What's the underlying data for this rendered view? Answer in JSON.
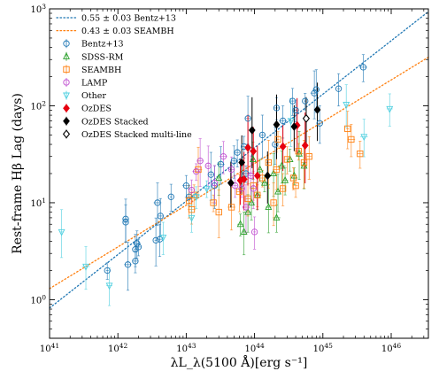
{
  "chart_data": {
    "type": "scatter",
    "xlabel": "λL_λ(5100 Å)[erg s⁻¹]",
    "ylabel": "Rest-frame Hβ Lag (days)",
    "xscale": "log",
    "yscale": "log",
    "xlim": [
      1e+41,
      3.5e+46
    ],
    "ylim": [
      0.4,
      1000
    ],
    "xticks": [
      {
        "value": 1e+41,
        "label": "10^41"
      },
      {
        "value": 1e+42,
        "label": "10^42"
      },
      {
        "value": 1e+43,
        "label": "10^43"
      },
      {
        "value": 1e+44,
        "label": "10^44"
      },
      {
        "value": 1e+45,
        "label": "10^45"
      },
      {
        "value": 1e+46,
        "label": "10^46"
      }
    ],
    "yticks": [
      {
        "value": 1,
        "label": "10^0"
      },
      {
        "value": 10,
        "label": "10^1"
      },
      {
        "value": 100,
        "label": "10^2"
      },
      {
        "value": 1000,
        "label": "10^3"
      }
    ],
    "fits": [
      {
        "name": "0.55 ± 0.03 Bentz+13",
        "color": "#1f77b4",
        "style": "dotted",
        "x": [
          1e+41,
          3.5e+46
        ],
        "y": [
          0.82,
          936
        ]
      },
      {
        "name": "0.43 ± 0.03 SEAMBH",
        "color": "#ff7f0e",
        "style": "dotted",
        "x": [
          1e+41,
          3.5e+46
        ],
        "y": [
          1.3,
          317
        ]
      }
    ],
    "series": [
      {
        "name": "Bentz+13",
        "color": "#1f77b4",
        "marker": "circle-open",
        "points": [
          {
            "x": 7e+41,
            "y": 2.0
          },
          {
            "x": 1.4e+42,
            "y": 2.3
          },
          {
            "x": 1.3e+42,
            "y": 6.8
          },
          {
            "x": 1.3e+42,
            "y": 6.3
          },
          {
            "x": 1.8e+42,
            "y": 3.3
          },
          {
            "x": 1.9e+42,
            "y": 3.8
          },
          {
            "x": 1.8e+42,
            "y": 2.5
          },
          {
            "x": 2e+42,
            "y": 3.5
          },
          {
            "x": 3.6e+42,
            "y": 4.1
          },
          {
            "x": 3.8e+42,
            "y": 10.0
          },
          {
            "x": 4.2e+42,
            "y": 7.3
          },
          {
            "x": 4.1e+42,
            "y": 4.2
          },
          {
            "x": 6e+42,
            "y": 11.5
          },
          {
            "x": 1e+43,
            "y": 15.0
          },
          {
            "x": 1.1e+43,
            "y": 11.5
          },
          {
            "x": 2.3e+43,
            "y": 19.5
          },
          {
            "x": 2.6e+43,
            "y": 15.0
          },
          {
            "x": 3.2e+43,
            "y": 25.0
          },
          {
            "x": 5e+43,
            "y": 27.0
          },
          {
            "x": 5.6e+43,
            "y": 33.0
          },
          {
            "x": 7e+43,
            "y": 38.0
          },
          {
            "x": 7.5e+43,
            "y": 20.0
          },
          {
            "x": 8e+43,
            "y": 74.0
          },
          {
            "x": 1.3e+44,
            "y": 50.0
          },
          {
            "x": 2e+44,
            "y": 40.0
          },
          {
            "x": 2.6e+44,
            "y": 70.0
          },
          {
            "x": 3.6e+44,
            "y": 112.0
          },
          {
            "x": 4e+44,
            "y": 90.0
          },
          {
            "x": 5.5e+44,
            "y": 112.0
          },
          {
            "x": 7.5e+44,
            "y": 135.0
          },
          {
            "x": 8e+44,
            "y": 147.0
          },
          {
            "x": 9e+44,
            "y": 66.0
          },
          {
            "x": 1.7e+45,
            "y": 150.0
          },
          {
            "x": 3.9e+45,
            "y": 250.0
          },
          {
            "x": 2.1e+44,
            "y": 95.0
          }
        ]
      },
      {
        "name": "SDSS-RM",
        "color": "#2ca02c",
        "marker": "triangle-up-open",
        "points": [
          {
            "x": 7e+43,
            "y": 5.0
          },
          {
            "x": 8e+43,
            "y": 8.0
          },
          {
            "x": 9e+43,
            "y": 10.0
          },
          {
            "x": 1.1e+44,
            "y": 12.0
          },
          {
            "x": 1.2e+44,
            "y": 22.0
          },
          {
            "x": 1.4e+44,
            "y": 16.0
          },
          {
            "x": 1.6e+44,
            "y": 9.0
          },
          {
            "x": 1.9e+44,
            "y": 20.0
          },
          {
            "x": 2.2e+44,
            "y": 13.0
          },
          {
            "x": 2.5e+44,
            "y": 24.0
          },
          {
            "x": 2.8e+44,
            "y": 17.0
          },
          {
            "x": 3.3e+44,
            "y": 28.0
          },
          {
            "x": 3.8e+44,
            "y": 19.0
          },
          {
            "x": 4.5e+44,
            "y": 32.0
          },
          {
            "x": 5.3e+44,
            "y": 24.0
          },
          {
            "x": 9.5e+43,
            "y": 28.0
          },
          {
            "x": 3e+43,
            "y": 18.0
          },
          {
            "x": 2.1e+44,
            "y": 7.0
          },
          {
            "x": 6.2e+43,
            "y": 6.0
          }
        ]
      },
      {
        "name": "SEAMBH",
        "color": "#ff7f0e",
        "marker": "square-open",
        "points": [
          {
            "x": 1.1e+43,
            "y": 10.5
          },
          {
            "x": 1.2e+43,
            "y": 8.5
          },
          {
            "x": 1.3e+43,
            "y": 12.0
          },
          {
            "x": 2.5e+43,
            "y": 10.0
          },
          {
            "x": 3e+43,
            "y": 8.0
          },
          {
            "x": 4.6e+43,
            "y": 9.0
          },
          {
            "x": 6e+43,
            "y": 13.0
          },
          {
            "x": 8e+43,
            "y": 11.0
          },
          {
            "x": 9.6e+43,
            "y": 15.0
          },
          {
            "x": 1.1e+44,
            "y": 12.0
          },
          {
            "x": 1.3e+44,
            "y": 18.0
          },
          {
            "x": 1.6e+44,
            "y": 26.0
          },
          {
            "x": 1.9e+44,
            "y": 10.0
          },
          {
            "x": 2.1e+44,
            "y": 22.0
          },
          {
            "x": 2.6e+44,
            "y": 14.0
          },
          {
            "x": 3e+44,
            "y": 28.0
          },
          {
            "x": 3.7e+44,
            "y": 18.0
          },
          {
            "x": 4.4e+44,
            "y": 34.0
          },
          {
            "x": 5.3e+44,
            "y": 26.0
          },
          {
            "x": 6.3e+44,
            "y": 30.0
          },
          {
            "x": 2.3e+45,
            "y": 58.0
          },
          {
            "x": 2.6e+45,
            "y": 45.0
          },
          {
            "x": 3.5e+45,
            "y": 32.0
          },
          {
            "x": 4e+44,
            "y": 15.0
          },
          {
            "x": 2.2e+44,
            "y": 45.0
          },
          {
            "x": 1.5e+43,
            "y": 22.0
          }
        ]
      },
      {
        "name": "LAMP",
        "color": "#c04fd0",
        "marker": "circle-open",
        "points": [
          {
            "x": 1.2e+43,
            "y": 13.5
          },
          {
            "x": 1.4e+43,
            "y": 21.0
          },
          {
            "x": 1.6e+43,
            "y": 27.0
          },
          {
            "x": 2.1e+43,
            "y": 24.0
          },
          {
            "x": 2.6e+43,
            "y": 16.0
          },
          {
            "x": 3.5e+43,
            "y": 30.0
          },
          {
            "x": 4.6e+43,
            "y": 22.0
          },
          {
            "x": 5.2e+43,
            "y": 15.0
          },
          {
            "x": 6.5e+43,
            "y": 14.0
          },
          {
            "x": 7.5e+43,
            "y": 9.0
          },
          {
            "x": 8.8e+43,
            "y": 19.0
          },
          {
            "x": 9.6e+43,
            "y": 14.0
          },
          {
            "x": 1e+44,
            "y": 5.0
          }
        ]
      },
      {
        "name": "Other",
        "color": "#4fd0e0",
        "marker": "triangle-down-open",
        "points": [
          {
            "x": 1.5e+41,
            "y": 5.0
          },
          {
            "x": 3.4e+41,
            "y": 2.2
          },
          {
            "x": 7.5e+41,
            "y": 1.4
          },
          {
            "x": 4.6e+42,
            "y": 4.4
          },
          {
            "x": 1.2e+43,
            "y": 7.0
          },
          {
            "x": 1.4e+43,
            "y": 11.5
          },
          {
            "x": 2e+43,
            "y": 14.0
          },
          {
            "x": 3.4e+44,
            "y": 70.0
          },
          {
            "x": 2.2e+45,
            "y": 103.0
          },
          {
            "x": 4e+45,
            "y": 48.0
          },
          {
            "x": 9.5e+45,
            "y": 93.0
          }
        ]
      },
      {
        "name": "OzDES",
        "color": "#e6000f",
        "marker": "diamond-filled",
        "points": [
          {
            "x": 6.2e+43,
            "y": 17.0
          },
          {
            "x": 7e+43,
            "y": 17.5
          },
          {
            "x": 8e+43,
            "y": 37.0
          },
          {
            "x": 9.6e+43,
            "y": 34.0
          },
          {
            "x": 1.1e+44,
            "y": 19.0
          },
          {
            "x": 2.6e+44,
            "y": 38.0
          },
          {
            "x": 4.2e+44,
            "y": 63.0
          },
          {
            "x": 5.5e+44,
            "y": 39.0
          }
        ]
      },
      {
        "name": "OzDES Stacked",
        "color": "#000000",
        "marker": "diamond-filled",
        "points": [
          {
            "x": 4.5e+43,
            "y": 16.0
          },
          {
            "x": 6.5e+43,
            "y": 26.0
          },
          {
            "x": 9.2e+43,
            "y": 56.0
          },
          {
            "x": 1.55e+44,
            "y": 19.0
          },
          {
            "x": 2.1e+44,
            "y": 64.0
          },
          {
            "x": 3.8e+44,
            "y": 61.0
          },
          {
            "x": 8.3e+44,
            "y": 91.0
          }
        ]
      },
      {
        "name": "OzDES Stacked multi-line",
        "color": "#000000",
        "marker": "diamond-open",
        "points": [
          {
            "x": 5.7e+44,
            "y": 74.0
          }
        ]
      }
    ]
  }
}
